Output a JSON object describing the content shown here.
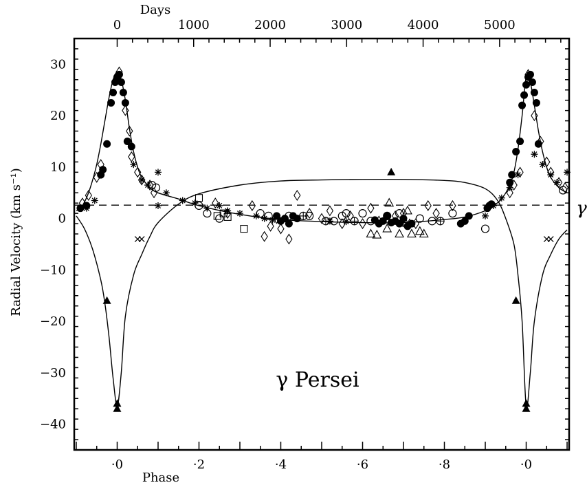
{
  "chart_data": {
    "type": "scatter",
    "title": "γ Persei",
    "xlabel": "Phase",
    "x2label": "Days",
    "ylabel": "Radial Velocity (km s⁻¹)",
    "gamma_label": "γ",
    "xlim": [
      -0.105,
      1.105
    ],
    "x2_tick_labels": [
      "0",
      "1000",
      "2000",
      "3000",
      "4000",
      "5000"
    ],
    "x2_ticks_phase": [
      0.0,
      0.187,
      0.374,
      0.561,
      0.748,
      0.935
    ],
    "x_tick_values": [
      0.0,
      0.2,
      0.4,
      0.6,
      0.8,
      1.0
    ],
    "x_tick_labels": [
      "·0",
      "·2",
      "·4",
      "·6",
      "·8",
      "·0"
    ],
    "ylim": [
      -45,
      35
    ],
    "y_ticks": [
      30,
      20,
      10,
      0,
      -10,
      -20,
      -30,
      -40
    ],
    "y_tick_labels": [
      "30",
      "20",
      "10",
      "0",
      "−10",
      "−20",
      "−30",
      "−40"
    ],
    "gamma_velocity": 2.6,
    "grid": false,
    "legend": "none",
    "curves": [
      {
        "x": [
          -0.1,
          -0.09,
          -0.08,
          -0.07,
          -0.06,
          -0.05,
          -0.04,
          -0.03,
          -0.02,
          -0.01,
          0.0,
          0.01,
          0.02,
          0.03,
          0.04,
          0.05,
          0.06,
          0.08,
          0.1,
          0.15,
          0.2,
          0.3,
          0.4,
          0.5,
          0.6,
          0.7,
          0.8,
          0.85,
          0.9,
          0.92,
          0.94,
          0.96,
          0.97,
          0.98,
          0.99,
          1.0,
          1.01,
          1.02,
          1.03,
          1.04,
          1.05,
          1.06,
          1.08,
          1.1
        ],
        "y": [
          1.5,
          2.0,
          3.2,
          5.0,
          7.5,
          10.5,
          14.5,
          19.0,
          23.5,
          27.0,
          28.5,
          27.0,
          23.0,
          17.5,
          13.0,
          10.0,
          8.0,
          6.0,
          5.0,
          3.8,
          2.5,
          0.8,
          -0.2,
          -0.6,
          -0.8,
          -0.8,
          -0.2,
          0.3,
          1.5,
          2.5,
          3.8,
          6.5,
          9.0,
          13.5,
          20.0,
          27.5,
          26.5,
          22.0,
          17.0,
          13.0,
          10.0,
          8.0,
          6.0,
          5.0
        ]
      },
      {
        "x": [
          -0.1,
          -0.08,
          -0.06,
          -0.04,
          -0.03,
          -0.02,
          -0.01,
          0.0,
          0.01,
          0.02,
          0.04,
          0.06,
          0.08,
          0.1,
          0.15,
          0.2,
          0.3,
          0.4,
          0.5,
          0.6,
          0.7,
          0.8,
          0.85,
          0.9,
          0.93,
          0.95,
          0.97,
          0.98,
          0.99,
          1.0,
          1.01,
          1.02,
          1.04,
          1.06,
          1.08,
          1.1
        ],
        "y": [
          0.5,
          -2.0,
          -6.0,
          -12.0,
          -16.5,
          -23.0,
          -31.0,
          -36.5,
          -30.0,
          -19.0,
          -11.0,
          -7.0,
          -3.5,
          -0.8,
          2.8,
          4.8,
          6.5,
          7.3,
          7.5,
          7.6,
          7.6,
          7.4,
          7.0,
          5.8,
          3.5,
          0.0,
          -5.0,
          -11.0,
          -20.0,
          -36.5,
          -30.0,
          -20.0,
          -11.0,
          -7.0,
          -4.0,
          -2.2
        ]
      }
    ],
    "series": [
      {
        "marker": "filled-circle",
        "x": [
          -0.09,
          -0.075,
          -0.04,
          -0.035,
          -0.025,
          -0.015,
          -0.01,
          -0.005,
          0.0,
          0.005,
          0.01,
          0.015,
          0.02,
          0.025,
          0.035,
          0.39,
          0.4,
          0.41,
          0.42,
          0.43,
          0.44,
          0.63,
          0.64,
          0.65,
          0.66,
          0.67,
          0.68,
          0.69,
          0.7,
          0.71,
          0.72,
          0.84,
          0.85,
          0.86,
          0.905,
          0.91,
          0.915,
          0.96,
          0.965,
          0.975,
          0.985,
          0.99,
          0.995,
          1.0,
          1.005,
          1.01,
          1.015,
          1.02,
          1.025,
          1.03
        ],
        "y": [
          2.0,
          2.5,
          8.5,
          9.5,
          14.5,
          22.5,
          24.5,
          26.5,
          27.5,
          28.0,
          26.5,
          24.5,
          22.5,
          15.0,
          14.0,
          0.5,
          -0.5,
          0.0,
          -1.0,
          0.5,
          0.0,
          -0.3,
          -1.0,
          -0.5,
          0.5,
          -0.8,
          -0.5,
          -1.0,
          0.0,
          -1.5,
          -1.0,
          -1.0,
          -0.5,
          0.5,
          2.0,
          2.5,
          2.8,
          7.0,
          8.5,
          13.0,
          15.0,
          22.0,
          24.0,
          26.0,
          27.5,
          28.0,
          26.5,
          24.5,
          22.5,
          14.5
        ]
      },
      {
        "marker": "open-diamond",
        "x": [
          -0.085,
          -0.07,
          -0.05,
          -0.04,
          0.005,
          0.02,
          0.03,
          0.035,
          0.05,
          0.06,
          0.08,
          0.09,
          0.24,
          0.27,
          0.33,
          0.36,
          0.375,
          0.39,
          0.4,
          0.42,
          0.44,
          0.47,
          0.5,
          0.52,
          0.55,
          0.57,
          0.6,
          0.62,
          0.64,
          0.68,
          0.7,
          0.73,
          0.76,
          0.78,
          0.82,
          0.96,
          0.97,
          0.985,
          1.005,
          1.02,
          1.035,
          1.05,
          1.06,
          1.08,
          1.095
        ],
        "y": [
          3.0,
          4.5,
          8.0,
          10.5,
          28.5,
          21.0,
          17.0,
          12.0,
          9.0,
          7.5,
          6.5,
          5.0,
          3.0,
          1.0,
          2.5,
          -3.5,
          -1.5,
          0.0,
          -2.0,
          -4.0,
          4.5,
          1.0,
          0.0,
          1.5,
          -1.0,
          0.5,
          -1.0,
          2.0,
          -0.5,
          0.5,
          1.0,
          -1.0,
          2.5,
          1.0,
          2.5,
          5.0,
          6.5,
          9.0,
          28.0,
          20.0,
          15.0,
          11.0,
          9.0,
          7.0,
          6.0
        ]
      },
      {
        "marker": "asterisk",
        "x": [
          -0.075,
          -0.055,
          0.04,
          0.06,
          0.075,
          0.1,
          0.1,
          0.12,
          0.16,
          0.19,
          0.22,
          0.25,
          0.27,
          0.3,
          0.34,
          0.36,
          0.38,
          0.52,
          0.56,
          0.9,
          0.92,
          0.94,
          0.96,
          0.98,
          1.02,
          1.04,
          1.06,
          1.075,
          1.1
        ],
        "y": [
          2.0,
          3.5,
          10.5,
          7.5,
          6.5,
          9.0,
          2.5,
          5.0,
          3.5,
          3.0,
          2.0,
          2.5,
          1.5,
          1.0,
          0.5,
          0.0,
          -0.3,
          -0.5,
          -0.6,
          0.5,
          2.5,
          4.0,
          6.0,
          8.5,
          12.5,
          10.5,
          8.5,
          7.0,
          9.0
        ]
      },
      {
        "marker": "open-circle",
        "x": [
          0.085,
          0.095,
          0.2,
          0.22,
          0.25,
          0.35,
          0.37,
          0.42,
          0.47,
          0.53,
          0.55,
          0.56,
          0.6,
          0.62,
          0.66,
          0.69,
          0.74,
          0.77,
          0.82,
          0.9,
          1.09
        ],
        "y": [
          6.5,
          6.0,
          2.5,
          1.0,
          0.0,
          1.0,
          0.5,
          0.5,
          0.5,
          -0.5,
          0.5,
          1.0,
          1.0,
          -0.5,
          0.5,
          1.0,
          0.0,
          -0.5,
          1.0,
          -2.0,
          5.5
        ]
      },
      {
        "marker": "circle-plus",
        "x": [
          0.455,
          0.51,
          0.58,
          0.7,
          0.79
        ],
        "y": [
          0.5,
          -0.5,
          -0.5,
          -0.8,
          -0.5
        ]
      },
      {
        "marker": "open-square",
        "x": [
          0.2,
          0.245,
          0.26,
          0.27,
          0.31
        ],
        "y": [
          4.0,
          0.5,
          1.0,
          0.3,
          -2.0
        ]
      },
      {
        "marker": "open-triangle",
        "x": [
          0.62,
          0.635,
          0.66,
          0.665,
          0.69,
          0.71,
          0.715,
          0.72,
          0.74,
          0.75
        ],
        "y": [
          -3.0,
          -3.2,
          -2.0,
          3.0,
          -3.0,
          1.5,
          -1.0,
          -3.0,
          -2.5,
          -3.0
        ]
      },
      {
        "marker": "filled-triangle",
        "x": [
          -0.025,
          0.0,
          0.0,
          0.67,
          0.975,
          1.0,
          1.0
        ],
        "y": [
          -16.0,
          -36.0,
          -37.0,
          9.0,
          -16.0,
          -36.0,
          -37.0
        ]
      },
      {
        "marker": "cross",
        "x": [
          0.05,
          0.06,
          1.05,
          1.06
        ],
        "y": [
          -4.0,
          -4.0,
          -4.0,
          -4.0
        ]
      }
    ]
  }
}
